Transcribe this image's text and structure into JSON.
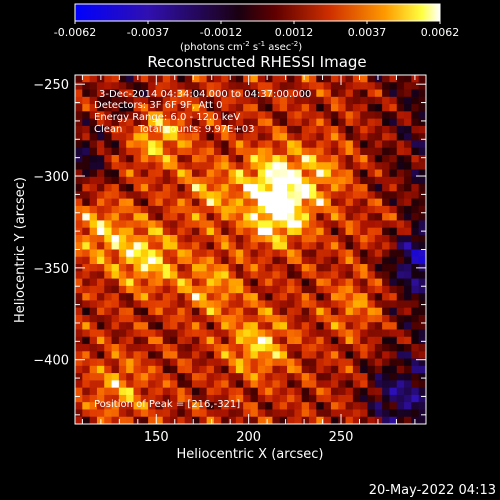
{
  "colorbar": {
    "ticks": [
      "-0.0062",
      "-0.0037",
      "-0.0012",
      "0.0012",
      "0.0037",
      "0.0062"
    ],
    "unit_label": "(photons cm",
    "unit_sup1": "-2",
    "unit_mid": " s",
    "unit_sup2": "-1",
    "unit_end": " asec",
    "unit_sup3": "-2",
    "unit_close": ")",
    "range": [
      -0.0062,
      0.0062
    ]
  },
  "annotations": {
    "time_range": "3-Dec-2014 04:34:04.000 to 04:37:00.000",
    "detectors": "Detectors: 3F 6F 9F, Att 0",
    "energy": "Energy Range: 6.0 - 12.0 keV",
    "clean": "Clean     Total counts: 9.97E+03",
    "peak": "Position of Peak = [216,-321]"
  },
  "footer": {
    "date": "20-May-2022 04:13"
  },
  "chart_data": {
    "type": "heatmap",
    "title": "Reconstructed RHESSI Image",
    "xlabel": "Heliocentric X (arcsec)",
    "ylabel": "Heliocentric Y (arcsec)",
    "xlim": [
      106,
      296
    ],
    "ylim": [
      -435,
      -245
    ],
    "xticks": [
      150,
      200,
      250
    ],
    "yticks": [
      -250,
      -300,
      -350,
      -400
    ],
    "peak": {
      "x": 216,
      "y": -321
    },
    "colormap": [
      "#0000ff",
      "#3000a0",
      "#000000",
      "#700000",
      "#d02000",
      "#ff8000",
      "#ffff00",
      "#ffffff"
    ],
    "hotspots": [
      {
        "x": 216,
        "y": -321,
        "intensity": 1.0
      },
      {
        "x": 213,
        "y": -300,
        "intensity": 0.75
      },
      {
        "x": 150,
        "y": -278,
        "intensity": 0.7
      },
      {
        "x": 145,
        "y": -345,
        "intensity": 0.75
      },
      {
        "x": 120,
        "y": -330,
        "intensity": 0.6
      },
      {
        "x": 205,
        "y": -392,
        "intensity": 0.7
      },
      {
        "x": 238,
        "y": -300,
        "intensity": 0.5
      },
      {
        "x": 180,
        "y": -360,
        "intensity": 0.55
      },
      {
        "x": 130,
        "y": -415,
        "intensity": 0.5
      },
      {
        "x": 260,
        "y": -370,
        "intensity": 0.45
      },
      {
        "x": 180,
        "y": -310,
        "intensity": 0.5
      },
      {
        "x": 275,
        "y": -330,
        "intensity": 0.35
      }
    ],
    "coldspots": [
      {
        "x": 110,
        "y": -290,
        "intensity": -0.6
      },
      {
        "x": 290,
        "y": -345,
        "intensity": -0.7
      },
      {
        "x": 280,
        "y": -420,
        "intensity": -0.6
      },
      {
        "x": 135,
        "y": -260,
        "intensity": -0.4
      }
    ]
  }
}
